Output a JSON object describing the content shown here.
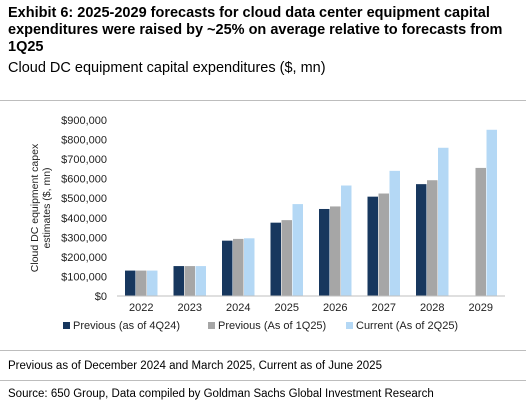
{
  "header": {
    "title": "Exhibit 6: 2025-2029 forecasts for cloud data center equipment capital expenditures were raised by ~25% on average relative to forecasts from 1Q25",
    "subtitle": "Cloud DC equipment capital expenditures ($, mn)"
  },
  "footer": {
    "note": "Previous as of December 2024 and March 2025, Current as of June 2025",
    "source": "Source: 650 Group, Data compiled by Goldman Sachs Global Investment Research"
  },
  "chart_data": {
    "type": "bar",
    "categories": [
      "2022",
      "2023",
      "2024",
      "2025",
      "2026",
      "2027",
      "2028",
      "2029"
    ],
    "series": [
      {
        "name": "Previous (as of 4Q24)",
        "color": "#17375e",
        "values": [
          130000,
          153000,
          283000,
          375000,
          445000,
          508000,
          572000,
          null
        ]
      },
      {
        "name": "Previous (As of 1Q25)",
        "color": "#a6a6a6",
        "values": [
          130000,
          153000,
          292000,
          388000,
          458000,
          524000,
          592000,
          655000
        ]
      },
      {
        "name": "Current (As of 2Q25)",
        "color": "#b4d8f5",
        "values": [
          130000,
          153000,
          295000,
          470000,
          565000,
          640000,
          758000,
          850000
        ]
      }
    ],
    "ylabel": "Cloud DC equipment capex estimates ($, mn)",
    "ylim": [
      0,
      900000
    ],
    "yticks": [
      0,
      100000,
      200000,
      300000,
      400000,
      500000,
      600000,
      700000,
      800000,
      900000
    ],
    "ytick_labels": [
      "$0",
      "$100,000",
      "$200,000",
      "$300,000",
      "$400,000",
      "$500,000",
      "$600,000",
      "$700,000",
      "$800,000",
      "$900,000"
    ],
    "grid": false,
    "legend": "bottom"
  }
}
